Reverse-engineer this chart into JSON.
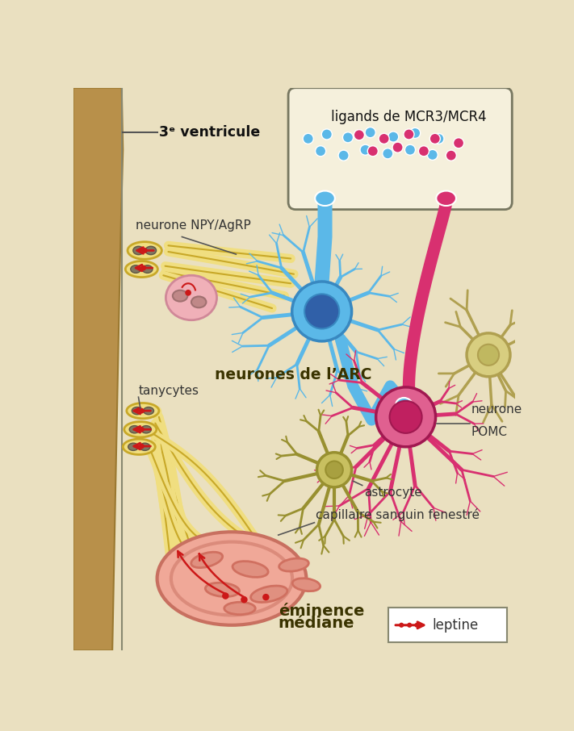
{
  "bg_color": "#EAE0C0",
  "wall_color": "#B8904A",
  "wall_dark": "#9A7830",
  "inner_bg": "#EAE0C0",
  "title_3v": "3ᵉ ventricule",
  "label_npy": "neurone NPY/AgRP",
  "label_tanycytes": "tanycytes",
  "label_arc": "neurones de l’ARC",
  "label_pomc": "neurone\nPOMC",
  "label_astrocyte": "astrocyte",
  "label_capillaire": "capillaire sanguin fenestré",
  "label_eminence1": "éminence",
  "label_eminence2": "médiane",
  "label_ligands": "ligands de MCR3/MCR4",
  "label_leptine": "leptine",
  "blue_color": "#5BB8E8",
  "blue_nucleus": "#3060A8",
  "blue_outline": "#3888C0",
  "pink_color": "#D83070",
  "pink_fill": "#E06090",
  "pink_nucleus": "#C02060",
  "pink_outline": "#A01850",
  "yellow_pale": "#D8CE80",
  "yellow_pale_outline": "#B0A050",
  "yellow_pale_nucleus": "#C0B860",
  "tanycyte_fill": "#F0DE80",
  "tanycyte_outline": "#C8A828",
  "tanycyte_nucleus": "#807860",
  "red_color": "#CC1818",
  "capillary_outer": "#F0A898",
  "capillary_inner": "#E89888",
  "capillary_outline": "#C87060",
  "cell_orange": "#D07060",
  "cell_fill": "#E09080",
  "box_bg": "#F5F0DC",
  "astrocyte_fill": "#C8C060",
  "astrocyte_outline": "#989030",
  "astrocyte_nucleus": "#A8A040",
  "blob_fill": "#F0B0B8",
  "blob_outline": "#D08898",
  "blob_nucleus": "#C08888"
}
